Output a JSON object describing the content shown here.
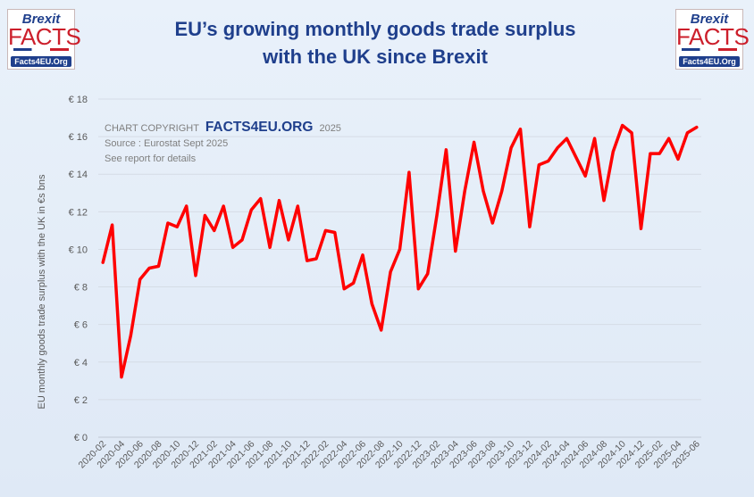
{
  "logos": {
    "brand_top": "Brexit",
    "brand_main": "FACTS",
    "site": "Facts4EU.Org"
  },
  "title": {
    "line1": "EU’s growing monthly goods trade surplus",
    "line2": "with the UK since Brexit"
  },
  "annotation": {
    "copyright_prefix": "CHART COPYRIGHT",
    "copyright_brand": "FACTS4EU.ORG",
    "copyright_year": "2025",
    "source": "Source : Eurostat Sept 2025",
    "note": "See report for details"
  },
  "colors": {
    "line": "#ff0000",
    "title": "#1f3f8c",
    "brand_red": "#cc1f2b",
    "grid": "#d5dce6",
    "axis_text": "#595959"
  },
  "chart_data": {
    "type": "line",
    "title": "EU’s growing monthly goods trade surplus with the UK since Brexit",
    "xlabel": "",
    "ylabel": "EU monthly goods trade surplus with the UK in €s bns",
    "ylim": [
      0,
      18
    ],
    "yticks": [
      "€ 0",
      "€ 2",
      "€ 4",
      "€ 6",
      "€ 8",
      "€ 10",
      "€ 12",
      "€ 14",
      "€ 16",
      "€ 18"
    ],
    "xtick_labels": [
      "2020-02",
      "2020-04",
      "2020-06",
      "2020-08",
      "2020-10",
      "2020-12",
      "2021-02",
      "2021-04",
      "2021-06",
      "2021-08",
      "2021-10",
      "2021-12",
      "2022-02",
      "2022-04",
      "2022-06",
      "2022-08",
      "2022-10",
      "2022-12",
      "2023-02",
      "2023-04",
      "2023-06",
      "2023-08",
      "2023-10",
      "2023-12",
      "2024-02",
      "2024-04",
      "2024-06",
      "2024-08",
      "2024-10",
      "2024-12",
      "2025-02",
      "2025-04",
      "2025-06"
    ],
    "grid": true,
    "legend": "none",
    "series": [
      {
        "x": [
          "2020-02",
          "2020-03",
          "2020-04",
          "2020-05",
          "2020-06",
          "2020-07",
          "2020-08",
          "2020-09",
          "2020-10",
          "2020-11",
          "2020-12",
          "2021-01",
          "2021-02",
          "2021-03",
          "2021-04",
          "2021-05",
          "2021-06",
          "2021-07",
          "2021-08",
          "2021-09",
          "2021-10",
          "2021-11",
          "2021-12",
          "2022-01",
          "2022-02",
          "2022-03",
          "2022-04",
          "2022-05",
          "2022-06",
          "2022-07",
          "2022-08",
          "2022-09",
          "2022-10",
          "2022-11",
          "2022-12",
          "2023-01",
          "2023-02",
          "2023-03",
          "2023-04",
          "2023-05",
          "2023-06",
          "2023-07",
          "2023-08",
          "2023-09",
          "2023-10",
          "2023-11",
          "2023-12",
          "2024-01",
          "2024-02",
          "2024-03",
          "2024-04",
          "2024-05",
          "2024-06",
          "2024-07",
          "2024-08",
          "2024-09",
          "2024-10",
          "2024-11",
          "2024-12",
          "2025-01",
          "2025-02",
          "2025-03",
          "2025-04",
          "2025-05",
          "2025-06"
        ],
        "values": [
          9.3,
          11.3,
          3.2,
          5.4,
          8.4,
          9.0,
          9.1,
          11.4,
          11.2,
          12.3,
          8.6,
          11.8,
          11.0,
          12.3,
          10.1,
          10.5,
          12.1,
          12.7,
          10.1,
          12.6,
          10.5,
          12.3,
          9.4,
          9.5,
          11.0,
          10.9,
          7.9,
          8.2,
          9.7,
          7.1,
          5.7,
          8.8,
          10.0,
          14.1,
          7.9,
          8.7,
          11.8,
          15.3,
          9.9,
          13.1,
          15.7,
          13.1,
          11.4,
          13.1,
          15.4,
          16.4,
          11.2,
          14.5,
          14.7,
          15.4,
          15.9,
          14.9,
          13.9,
          15.9,
          12.6,
          15.2,
          16.6,
          16.2,
          11.1,
          15.1,
          15.1,
          15.9,
          14.8,
          16.2,
          16.5
        ]
      }
    ]
  }
}
